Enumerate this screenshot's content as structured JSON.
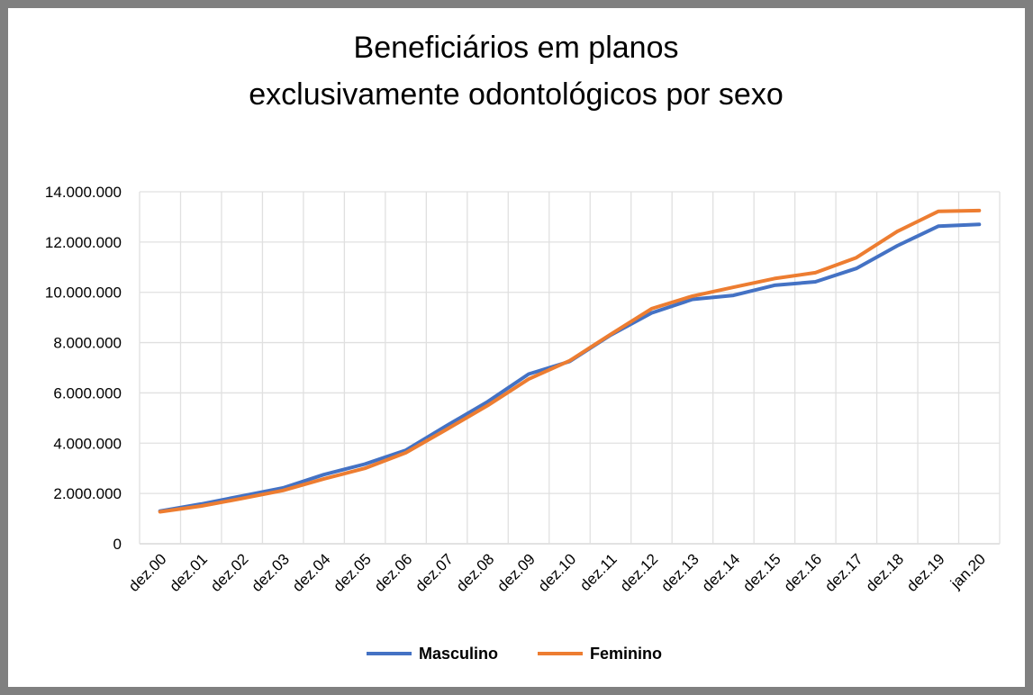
{
  "chart_data": {
    "type": "line",
    "title": [
      "Beneficiários em planos",
      "exclusivamente odontológicos por sexo"
    ],
    "xlabel": "",
    "ylabel": "",
    "categories": [
      "dez.00",
      "dez.01",
      "dez.02",
      "dez.03",
      "dez.04",
      "dez.05",
      "dez.06",
      "dez.07",
      "dez.08",
      "dez.09",
      "dez.10",
      "dez.11",
      "dez.12",
      "dez.13",
      "dez.14",
      "dez.15",
      "dez.16",
      "dez.17",
      "dez.18",
      "dez.19",
      "jan.20"
    ],
    "ylim": [
      0,
      14000000
    ],
    "yticks": [
      0,
      2000000,
      4000000,
      6000000,
      8000000,
      10000000,
      12000000,
      14000000
    ],
    "ytick_labels": [
      "0",
      "2.000.000",
      "4.000.000",
      "6.000.000",
      "8.000.000",
      "10.000.000",
      "12.000.000",
      "14.000.000"
    ],
    "grid": true,
    "legend_position": "bottom",
    "series": [
      {
        "name": "Masculino",
        "color": "#4472C4",
        "values": [
          1300000,
          1580000,
          1900000,
          2220000,
          2750000,
          3170000,
          3720000,
          4700000,
          5650000,
          6750000,
          7250000,
          8300000,
          9180000,
          9720000,
          9880000,
          10280000,
          10420000,
          10950000,
          11850000,
          12630000,
          12700000
        ]
      },
      {
        "name": "Feminino",
        "color": "#ED7D31",
        "values": [
          1270000,
          1500000,
          1800000,
          2120000,
          2580000,
          3000000,
          3620000,
          4550000,
          5500000,
          6550000,
          7280000,
          8330000,
          9350000,
          9850000,
          10200000,
          10550000,
          10780000,
          11380000,
          12420000,
          13220000,
          13250000
        ]
      }
    ]
  }
}
